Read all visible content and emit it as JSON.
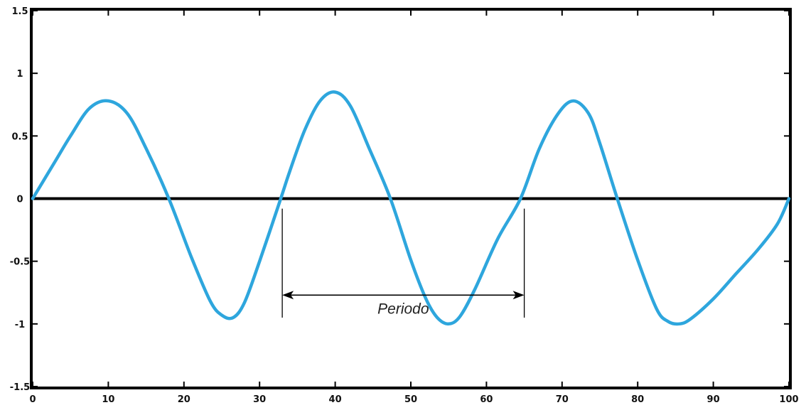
{
  "chart_data": {
    "type": "line",
    "title": "",
    "xlabel": "",
    "ylabel": "",
    "xlim": [
      0,
      100
    ],
    "ylim": [
      -1.5,
      1.5
    ],
    "x_ticks": [
      0,
      10,
      20,
      30,
      40,
      50,
      60,
      70,
      80,
      90,
      100
    ],
    "x_tick_labels": [
      "0",
      "10",
      "20",
      "30",
      "40",
      "50",
      "60",
      "70",
      "80",
      "90",
      "100"
    ],
    "y_ticks": [
      1.5,
      1,
      0.5,
      0,
      -0.5,
      -1,
      -1.5
    ],
    "y_tick_labels": [
      "1.5",
      "1",
      "0.5",
      "0",
      "-0.5",
      "-1",
      "-1.5"
    ],
    "grid": false,
    "zero_line": true,
    "series": [
      {
        "color": "#2ea6dd",
        "x": [
          0,
          3,
          5,
          7.5,
          10,
          12.5,
          15,
          18,
          21,
          23.5,
          25,
          26.5,
          28,
          30,
          32.8,
          34,
          36,
          38,
          40,
          42,
          44.5,
          47.3,
          50,
          52,
          53.5,
          55,
          56.5,
          58.5,
          61.5,
          64.5,
          67,
          69.5,
          71.5,
          73.5,
          75,
          77.3,
          80,
          82.5,
          84,
          85.5,
          87,
          90,
          93,
          96,
          98.5,
          100
        ],
        "y": [
          0,
          0.3,
          0.5,
          0.72,
          0.78,
          0.68,
          0.4,
          0,
          -0.47,
          -0.82,
          -0.93,
          -0.95,
          -0.83,
          -0.5,
          0,
          0.22,
          0.55,
          0.78,
          0.85,
          0.74,
          0.4,
          0,
          -0.49,
          -0.8,
          -0.95,
          -1.0,
          -0.94,
          -0.72,
          -0.32,
          0,
          0.4,
          0.68,
          0.78,
          0.68,
          0.44,
          0,
          -0.49,
          -0.88,
          -0.98,
          -1.0,
          -0.96,
          -0.8,
          -0.6,
          -0.4,
          -0.2,
          0
        ]
      }
    ],
    "annotations": [
      {
        "type": "bracket-arrow",
        "label": "Periodo",
        "x_start": 33,
        "x_end": 65
      }
    ]
  }
}
